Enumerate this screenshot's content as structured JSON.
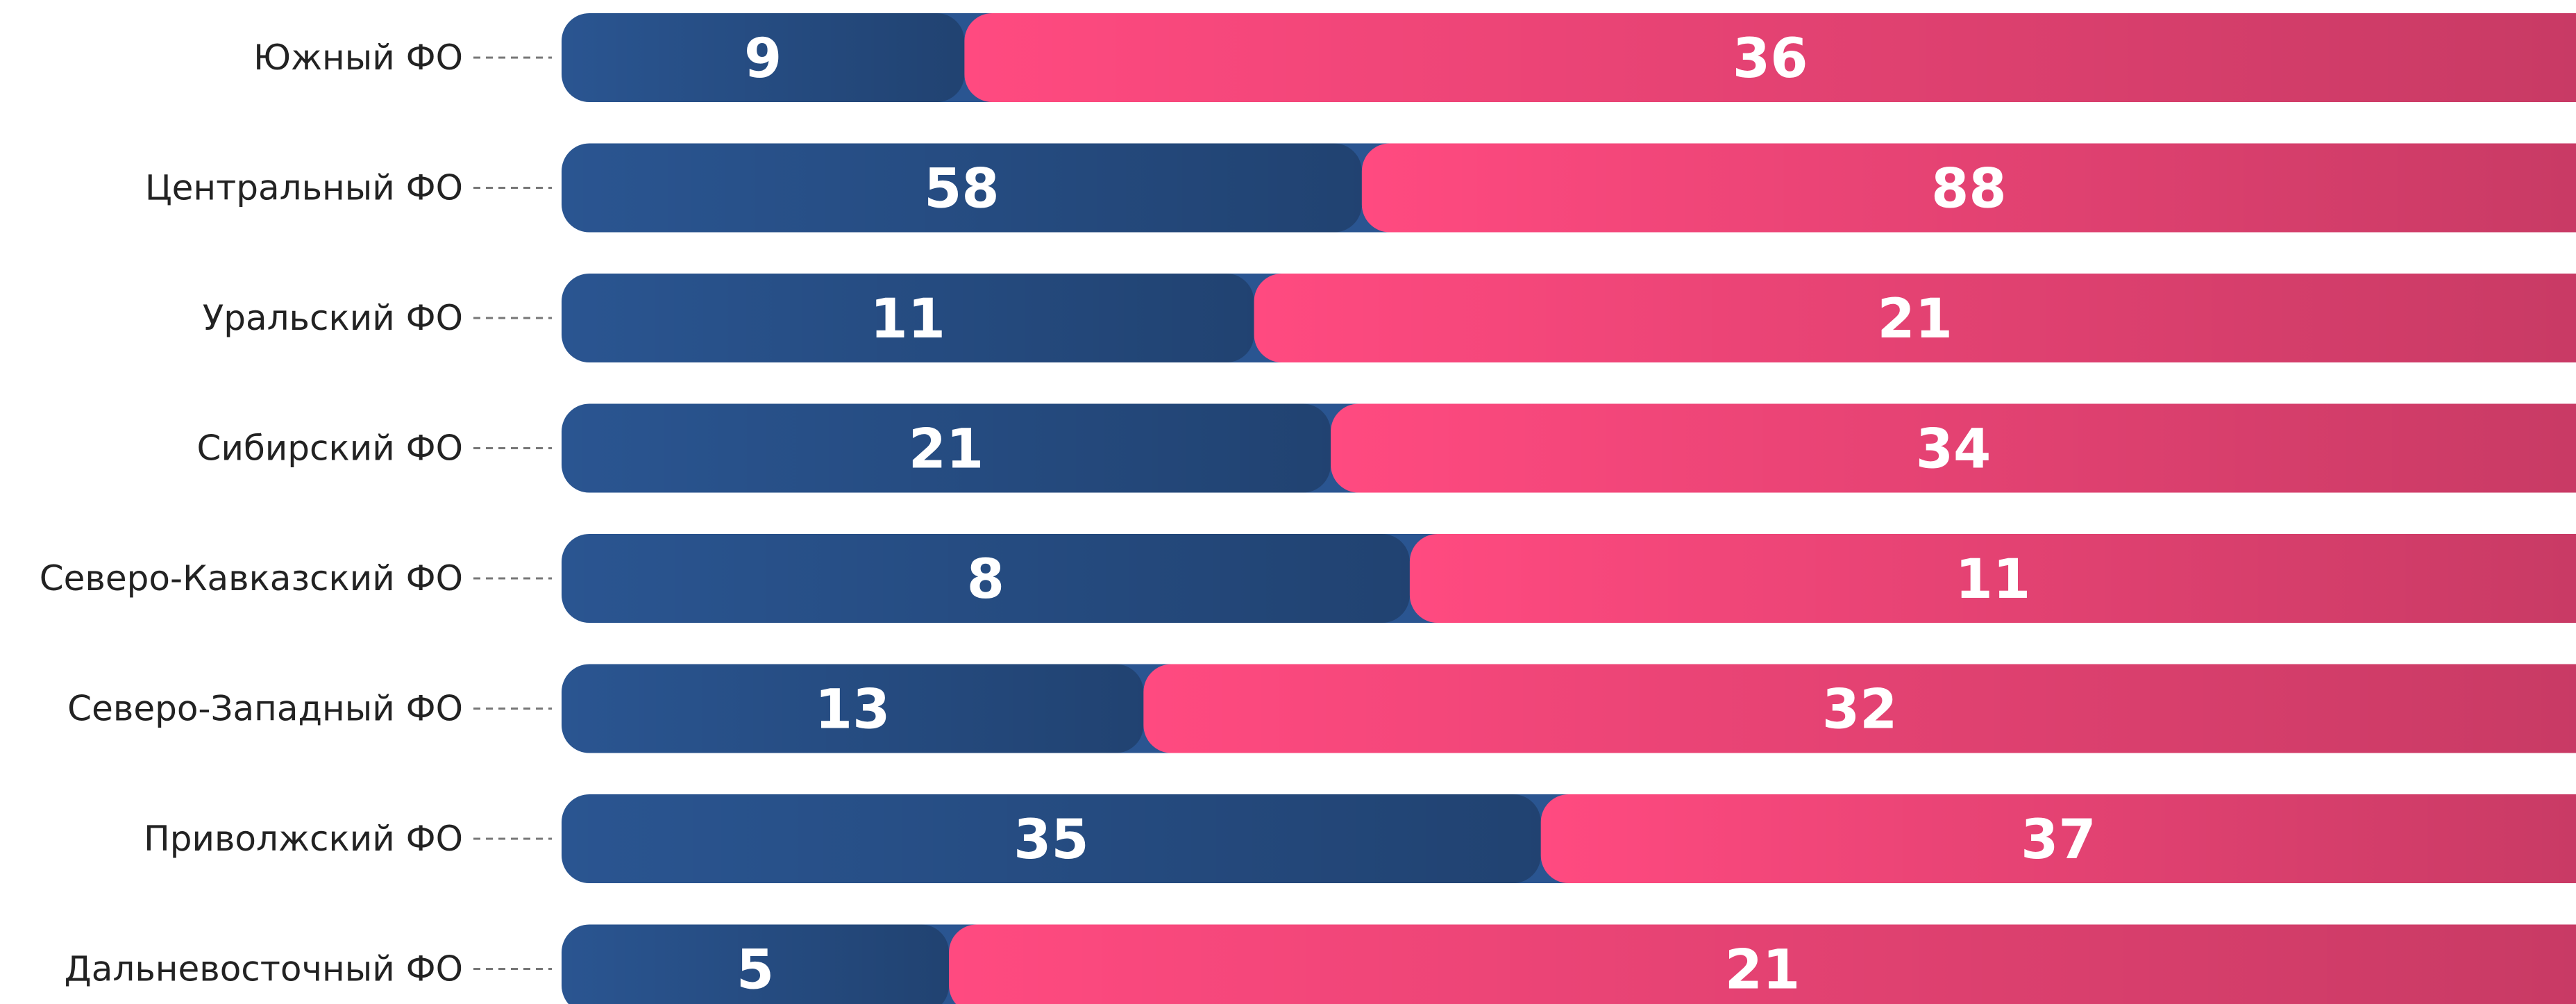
{
  "chart_data": {
    "type": "bar100",
    "categories": [
      "Южный ФО",
      "Центральный ФО",
      "Уральский ФО",
      "Сибирский ФО",
      "Северо-Кавказский ФО",
      "Северо-Западный ФО",
      "Приволжский ФО",
      "Дальневосточный ФО"
    ],
    "series": [
      {
        "color": "#2a5591",
        "values": [
          9,
          58,
          11,
          21,
          8,
          13,
          35,
          5
        ]
      },
      {
        "color": "#ff4a80",
        "values": [
          36,
          88,
          21,
          34,
          11,
          32,
          37,
          21
        ]
      }
    ]
  }
}
